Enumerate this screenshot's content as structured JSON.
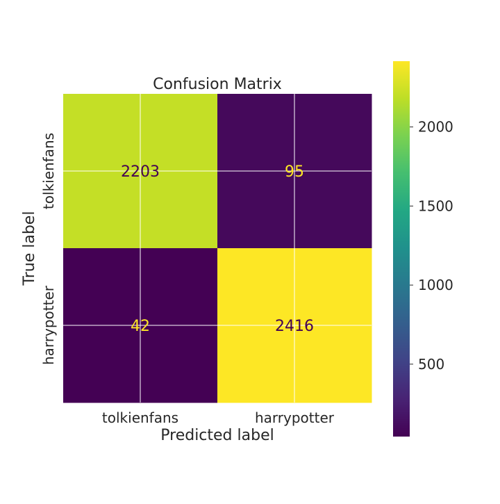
{
  "chart_data": {
    "type": "heatmap",
    "title": "Confusion Matrix",
    "xlabel": "Predicted label",
    "ylabel": "True label",
    "x_categories": [
      "tolkienfans",
      "harrypotter"
    ],
    "y_categories": [
      "tolkienfans",
      "harrypotter"
    ],
    "values": [
      [
        2203,
        95
      ],
      [
        42,
        2416
      ]
    ],
    "colormap": "viridis",
    "colorbar": {
      "range": [
        42,
        2416
      ],
      "ticks": [
        500,
        1000,
        1500,
        2000
      ],
      "tick_labels": [
        "500",
        "1000",
        "1500",
        "2000"
      ]
    },
    "grid": true
  }
}
